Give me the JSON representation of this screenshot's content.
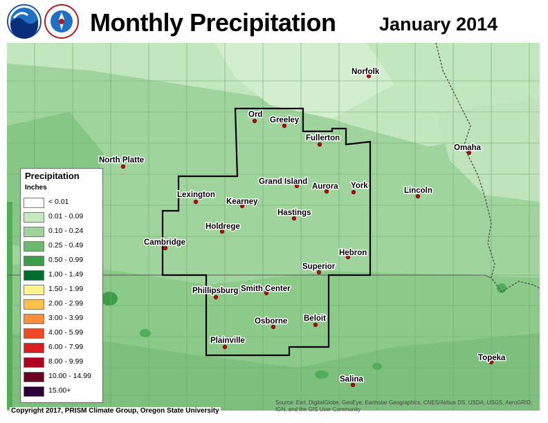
{
  "header": {
    "title": "Monthly Precipitation",
    "period": "January 2014"
  },
  "colors": {
    "base_fill": "#9fd49d",
    "light_fill": "#c7e8c3",
    "mid_fill": "#7fc27e",
    "dark_fill": "#3c9e48",
    "boundary": "#000000",
    "city_dot": "#c0001a"
  },
  "legend": {
    "title": "Precipitation",
    "units": "Inches",
    "items": [
      {
        "label": "< 0.01",
        "color": "#ffffff"
      },
      {
        "label": "0.01 - 0.09",
        "color": "#c7e8c3"
      },
      {
        "label": "0.10 - 0.24",
        "color": "#9fd49d"
      },
      {
        "label": "0.25 - 0.49",
        "color": "#6db86c"
      },
      {
        "label": "0.50 - 0.99",
        "color": "#3c9e48"
      },
      {
        "label": "1.00 - 1.49",
        "color": "#006d2c"
      },
      {
        "label": "1.50 - 1.99",
        "color": "#fff58c"
      },
      {
        "label": "2.00 - 2.99",
        "color": "#ffc04d"
      },
      {
        "label": "3.00 - 3.99",
        "color": "#ff8c3a"
      },
      {
        "label": "4.00 - 5.99",
        "color": "#f04a24"
      },
      {
        "label": "6.00 - 7.99",
        "color": "#d8201e"
      },
      {
        "label": "8.00 - 9.99",
        "color": "#b0001f"
      },
      {
        "label": "10.00 - 14.99",
        "color": "#6b0022"
      },
      {
        "label": "15.00+",
        "color": "#2a0035"
      }
    ]
  },
  "cities": [
    {
      "name": "Norfolk"
    },
    {
      "name": "Ord"
    },
    {
      "name": "Greeley"
    },
    {
      "name": "Fullerton"
    },
    {
      "name": "North Platte"
    },
    {
      "name": "Omaha"
    },
    {
      "name": "Grand Island"
    },
    {
      "name": "Aurora"
    },
    {
      "name": "York"
    },
    {
      "name": "Lexington"
    },
    {
      "name": "Kearney"
    },
    {
      "name": "Lincoln"
    },
    {
      "name": "Hastings"
    },
    {
      "name": "Holdrege"
    },
    {
      "name": "Cambridge"
    },
    {
      "name": "Hebron"
    },
    {
      "name": "Superior"
    },
    {
      "name": "Phillipsburg"
    },
    {
      "name": "Smith Center"
    },
    {
      "name": "Osborne"
    },
    {
      "name": "Beloit"
    },
    {
      "name": "Plainville"
    },
    {
      "name": "Topeka"
    },
    {
      "name": "Salina"
    }
  ],
  "footer": {
    "copyright": "Copyright 2017, PRISM Climate Group, Oregon State University",
    "source": "Source: Esri, DigitalGlobe, GeoEye, Earthstar Geographics, CNES/Airbus DS, USDA, USGS, AeroGRID, IGN, and the GIS User Community"
  }
}
